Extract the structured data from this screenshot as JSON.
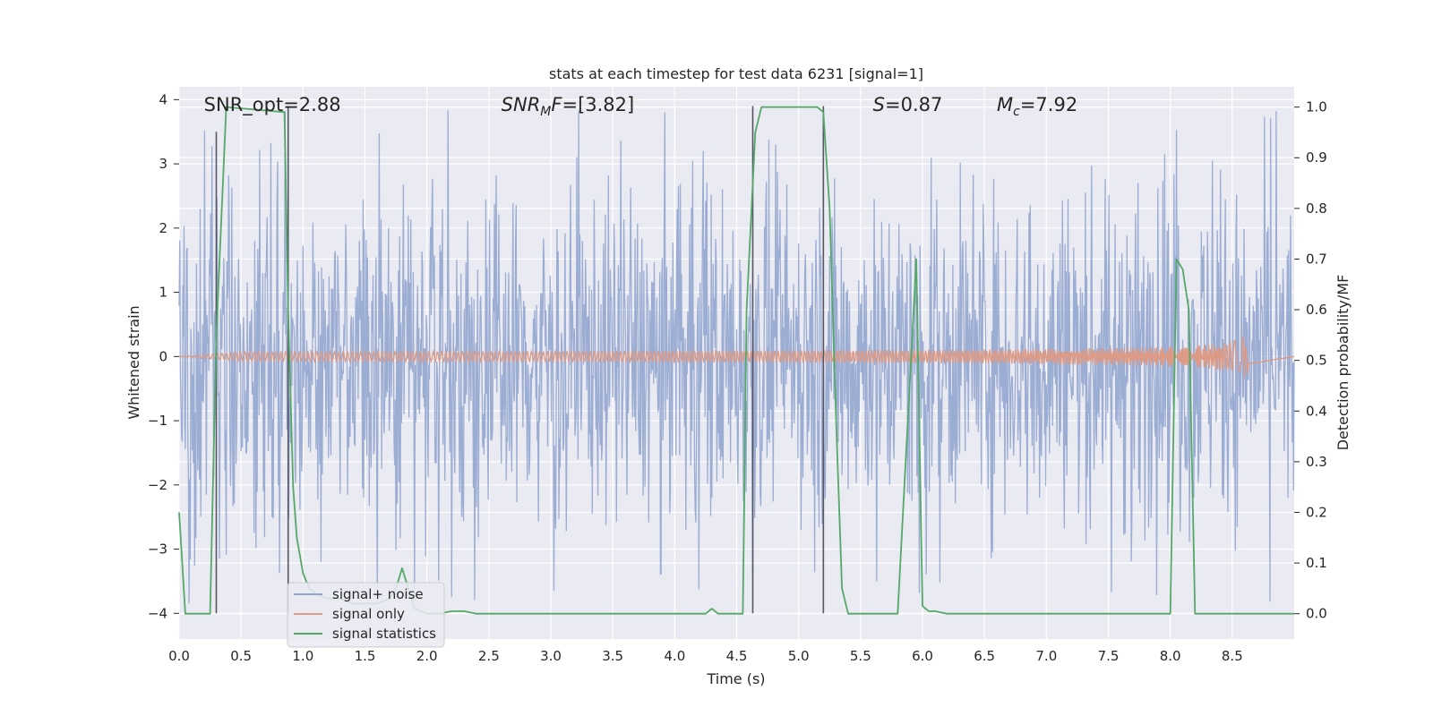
{
  "chart_data": {
    "type": "line",
    "title": "stats at each timestep for test data 6231 [signal=1]",
    "xlabel": "Time (s)",
    "ylabel": "Whitened strain",
    "y2label": "Detection probability/MF",
    "xlim": [
      0.0,
      9.0
    ],
    "ylim": [
      -4.4,
      4.2
    ],
    "y2lim": [
      -0.05,
      1.04
    ],
    "x_ticks": [
      0.0,
      0.5,
      1.0,
      1.5,
      2.0,
      2.5,
      3.0,
      3.5,
      4.0,
      4.5,
      5.0,
      5.5,
      6.0,
      6.5,
      7.0,
      7.5,
      8.0,
      8.5
    ],
    "x_tick_labels": [
      "0.0",
      "0.5",
      "1.0",
      "1.5",
      "2.0",
      "2.5",
      "3.0",
      "3.5",
      "4.0",
      "4.5",
      "5.0",
      "5.5",
      "6.0",
      "6.5",
      "7.0",
      "7.5",
      "8.0",
      "8.5"
    ],
    "y_ticks": [
      4,
      3,
      2,
      1,
      0,
      -1,
      -2,
      -3,
      -4
    ],
    "y_tick_labels": [
      "4",
      "3",
      "2",
      "1",
      "0",
      "−1",
      "−2",
      "−3",
      "−4"
    ],
    "y2_ticks": [
      1.0,
      0.9,
      0.8,
      0.7,
      0.6,
      0.5,
      0.4,
      0.3,
      0.2,
      0.1,
      0.0
    ],
    "y2_tick_labels": [
      "1.0",
      "0.9",
      "0.8",
      "0.7",
      "0.6",
      "0.5",
      "0.4",
      "0.3",
      "0.2",
      "0.1",
      "0.0"
    ],
    "grid": true,
    "legend_position": "bottom-left",
    "annotations": [
      {
        "kind": "plain",
        "x": 0.2,
        "text": "SNR_opt=2.88"
      },
      {
        "kind": "sub",
        "x": 2.6,
        "italic": "SNR",
        "sub": "M",
        "italic2": "F",
        "rest": "=[3.82]"
      },
      {
        "kind": "italic",
        "x": 5.6,
        "italic": "S",
        "rest": "=0.87"
      },
      {
        "kind": "sub",
        "x": 6.6,
        "italic": "M",
        "sub": "c",
        "italic2": "",
        "rest": "=7.92"
      }
    ],
    "series": [
      {
        "name": "signal+ noise",
        "color": "#92a6cf",
        "noise_band": 1.5,
        "peak_amplitude": 3.9,
        "duration": 9.0
      },
      {
        "name": "signal only",
        "color": "#dd9a85",
        "chirp_end": 8.65,
        "max_amplitude": 0.45
      },
      {
        "name": "signal statistics",
        "color": "#55a868",
        "axis": "y2",
        "x": [
          0.0,
          0.05,
          0.25,
          0.3,
          0.38,
          0.85,
          0.88,
          0.92,
          0.95,
          1.0,
          1.05,
          1.1,
          1.2,
          1.3,
          1.4,
          1.5,
          1.6,
          1.7,
          1.75,
          1.8,
          1.85,
          1.9,
          2.0,
          2.1,
          2.2,
          2.3,
          2.4,
          4.25,
          4.3,
          4.35,
          4.4,
          4.55,
          4.58,
          4.65,
          4.7,
          5.15,
          5.2,
          5.25,
          5.3,
          5.35,
          5.4,
          5.8,
          5.95,
          6.0,
          6.05,
          6.1,
          6.2,
          8.0,
          8.05,
          8.1,
          8.15,
          8.2,
          8.25,
          9.0
        ],
        "y": [
          0.2,
          0.0,
          0.0,
          0.55,
          1.0,
          0.99,
          0.6,
          0.25,
          0.15,
          0.08,
          0.05,
          0.04,
          0.03,
          0.03,
          0.02,
          0.02,
          0.02,
          0.03,
          0.05,
          0.09,
          0.05,
          0.01,
          0.0,
          0.0,
          0.005,
          0.005,
          0.0,
          0.0,
          0.01,
          0.0,
          0.0,
          0.0,
          0.6,
          0.95,
          1.0,
          1.0,
          0.99,
          0.8,
          0.4,
          0.05,
          0.0,
          0.0,
          0.7,
          0.015,
          0.005,
          0.005,
          0.0,
          0.0,
          0.7,
          0.68,
          0.6,
          0.0,
          0.0,
          0.0
        ]
      }
    ],
    "detection_markers": [
      {
        "x": 0.3,
        "y_top": 3.5,
        "y_bottom": -4.0
      },
      {
        "x": 0.88,
        "y_top": 3.9,
        "y_bottom": -4.0
      },
      {
        "x": 4.63,
        "y_top": 3.9,
        "y_bottom": -4.0
      },
      {
        "x": 5.2,
        "y_top": 3.9,
        "y_bottom": -4.0
      }
    ]
  }
}
